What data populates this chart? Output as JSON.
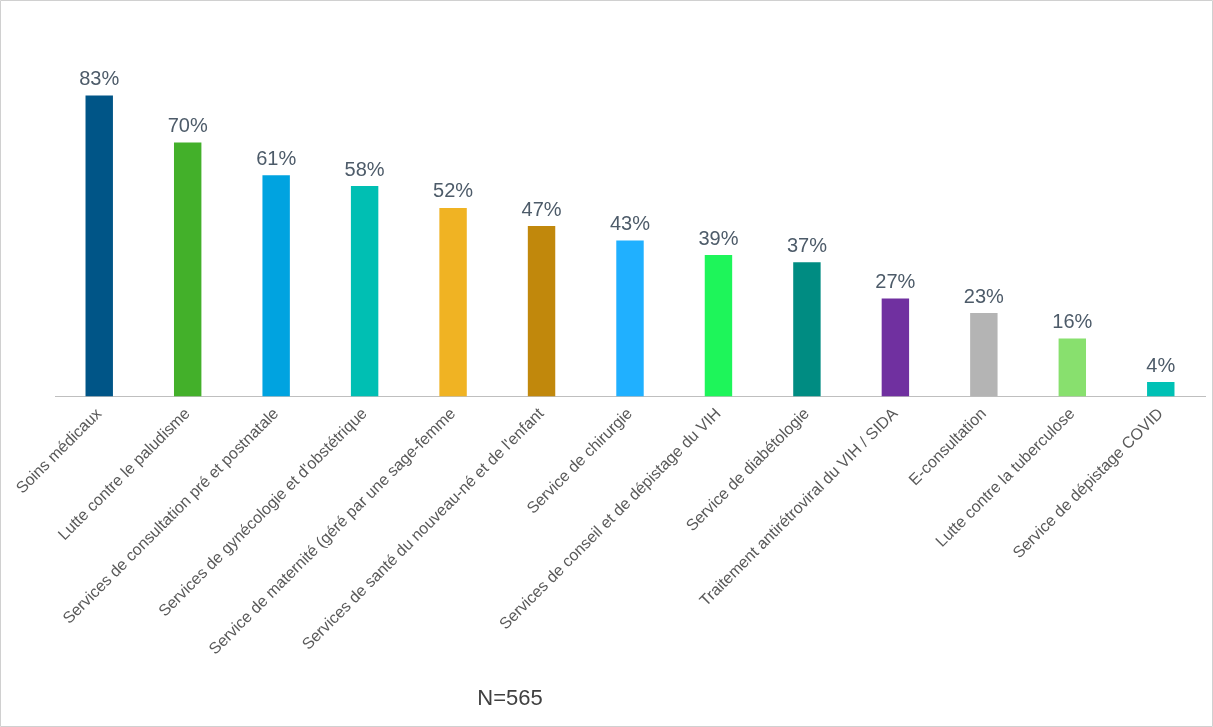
{
  "chart_data": {
    "type": "bar",
    "categories": [
      "Soins médicaux",
      "Lutte contre le paludisme",
      "Services de consultation pré et postnatale",
      "Services de gynécologie et d'obstétrique",
      "Service de maternité (géré par une sage-femme",
      "Services de santé du nouveau-né et de l'enfant",
      "Service de chirurgie",
      "Services de conseil et de dépistage du VIH",
      "Service de diabétologie",
      "Traitement antirétroviral du VIH / SIDA",
      "E-consultation",
      "Lutte contre la tuberculose",
      "Service de dépistage COVID"
    ],
    "values": [
      83,
      70,
      61,
      58,
      52,
      47,
      43,
      39,
      37,
      27,
      23,
      16,
      4
    ],
    "colors": [
      "#005587",
      "#43b02a",
      "#00a3e0",
      "#00bfb3",
      "#f0b323",
      "#c1880c",
      "#20b0ff",
      "#1ef55a",
      "#008c82",
      "#7030a0",
      "#b4b4b4",
      "#88e06e",
      "#00c1b5"
    ],
    "value_labels": [
      "83%",
      "70%",
      "61%",
      "58%",
      "52%",
      "47%",
      "43%",
      "39%",
      "37%",
      "27%",
      "23%",
      "16%",
      "4%"
    ],
    "tick_labels": "x",
    "grid": false,
    "legend": false,
    "annotations": [
      "N=565"
    ]
  }
}
